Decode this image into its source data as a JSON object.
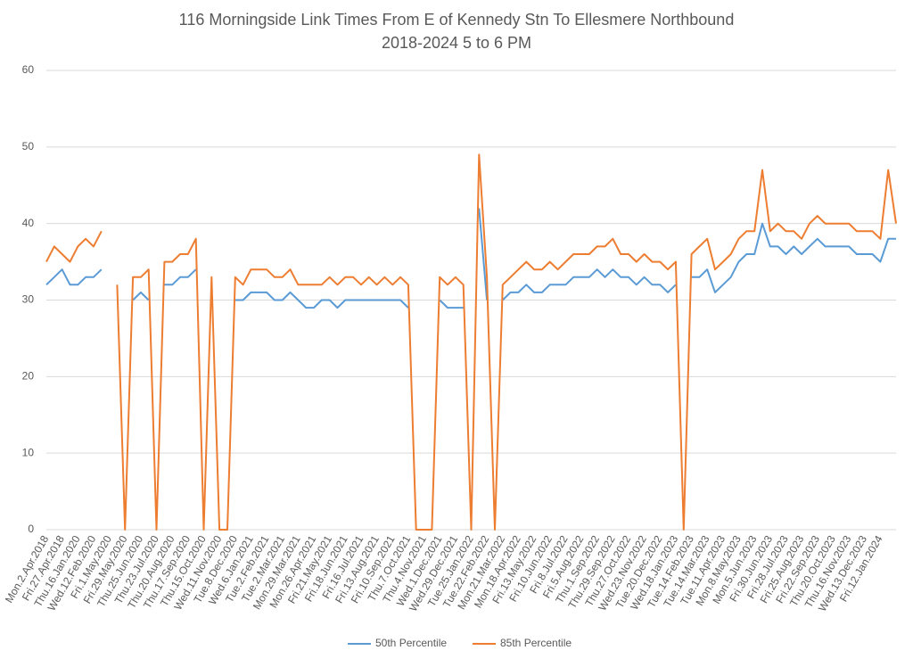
{
  "chart_data": {
    "type": "line",
    "title": "116 Morningside Link Times From E of Kennedy Stn To Ellesmere Northbound",
    "subtitle": "2018-2024 5 to 6 PM",
    "categories": [
      "Mon.2.Apr.2018",
      null,
      "Fri.27.Apr.2018",
      null,
      "Thu.16.Jan.2020",
      null,
      "Wed.12.Feb.2020",
      null,
      "Fri.1.May.2020",
      null,
      "Fri.29.May.2020",
      null,
      "Thu.25.Jun.2020",
      null,
      "Thu.23.Jul.2020",
      null,
      "Thu.20.Aug.2020",
      null,
      "Thu.17.Sep.2020",
      null,
      "Thu.15.Oct.2020",
      null,
      "Wed.11.Nov.2020",
      null,
      "Tue.8.Dec.2020",
      null,
      "Wed.6.Jan.2021",
      null,
      "Tue.2.Feb.2021",
      null,
      "Tue.2.Mar.2021",
      null,
      "Mon.29.Mar.2021",
      null,
      "Mon.26.Apr.2021",
      null,
      "Fri.21.May.2021",
      null,
      "Fri.18.Jun.2021",
      null,
      "Fri.16.Jul.2021",
      null,
      "Fri.13.Aug.2021",
      null,
      "Fri.10.Sep.2021",
      null,
      "Thu.7.Oct.2021",
      null,
      "Thu.4.Nov.2021",
      null,
      "Wed.1.Dec.2021",
      null,
      "Wed.29.Dec.2021",
      null,
      "Tue.25.Jan.2022",
      null,
      "Tue.22.Feb.2022",
      null,
      "Mon.21.Mar.2022",
      null,
      "Mon.18.Apr.2022",
      null,
      "Fri.13.May.2022",
      null,
      "Fri.10.Jun.2022",
      null,
      "Fri.8.Jul.2022",
      null,
      "Fri.5.Aug.2022",
      null,
      "Thu.1.Sep.2022",
      null,
      "Thu.29.Sep.2022",
      null,
      "Thu.27.Oct.2022",
      null,
      "Wed.23.Nov.2022",
      null,
      "Tue.20.Dec.2022",
      null,
      "Wed.18.Jan.2023",
      null,
      "Tue.14.Feb.2023",
      null,
      "Tue.14.Mar.2023",
      null,
      "Tue.11.Apr.2023",
      null,
      "Mon.8.May.2023",
      null,
      "Mon.5.Jun.2023",
      null,
      "Fri.30.Jun.2023",
      null,
      "Fri.28.Jul.2023",
      null,
      "Fri.25.Aug.2023",
      null,
      "Fri.22.Sep.2023",
      null,
      "Thu.20.Oct.2023",
      null,
      "Thu.16.Nov.2023",
      null,
      "Wed.13.Dec.2023",
      null,
      "Fri.12.Jan.2024",
      null,
      null
    ],
    "series": [
      {
        "name": "50th Percentile",
        "color": "#5b9bd5",
        "values": [
          32,
          33,
          34,
          32,
          32,
          33,
          33,
          34,
          null,
          29,
          null,
          30,
          31,
          30,
          null,
          32,
          32,
          33,
          33,
          34,
          null,
          31,
          null,
          null,
          30,
          30,
          31,
          31,
          31,
          30,
          30,
          31,
          30,
          29,
          29,
          30,
          30,
          29,
          30,
          30,
          30,
          30,
          30,
          30,
          30,
          30,
          29,
          null,
          null,
          null,
          30,
          29,
          29,
          29,
          null,
          42,
          30,
          null,
          30,
          31,
          31,
          32,
          31,
          31,
          32,
          32,
          32,
          33,
          33,
          33,
          34,
          33,
          34,
          33,
          33,
          32,
          33,
          32,
          32,
          31,
          32,
          null,
          33,
          33,
          34,
          31,
          32,
          33,
          35,
          36,
          36,
          40,
          37,
          37,
          36,
          37,
          36,
          37,
          38,
          37,
          37,
          37,
          37,
          36,
          36,
          36,
          35,
          38,
          38
        ]
      },
      {
        "name": "85th Percentile",
        "color": "#ed7d31",
        "values": [
          35,
          37,
          36,
          35,
          37,
          38,
          37,
          39,
          null,
          32,
          0,
          33,
          33,
          34,
          0,
          35,
          35,
          36,
          36,
          38,
          0,
          33,
          0,
          0,
          33,
          32,
          34,
          34,
          34,
          33,
          33,
          34,
          32,
          32,
          32,
          32,
          33,
          32,
          33,
          33,
          32,
          33,
          32,
          33,
          32,
          33,
          32,
          0,
          0,
          0,
          33,
          32,
          33,
          32,
          0,
          49,
          33,
          0,
          32,
          33,
          34,
          35,
          34,
          34,
          35,
          34,
          35,
          36,
          36,
          36,
          37,
          37,
          38,
          36,
          36,
          35,
          36,
          35,
          35,
          34,
          35,
          0,
          36,
          37,
          38,
          34,
          35,
          36,
          38,
          39,
          39,
          47,
          39,
          40,
          39,
          39,
          38,
          40,
          41,
          40,
          40,
          40,
          40,
          39,
          39,
          39,
          38,
          47,
          40
        ]
      }
    ],
    "ylim": [
      0,
      60
    ],
    "yticks": [
      0,
      10,
      20,
      30,
      40,
      50,
      60
    ],
    "grid": true,
    "legend": "bottom"
  }
}
